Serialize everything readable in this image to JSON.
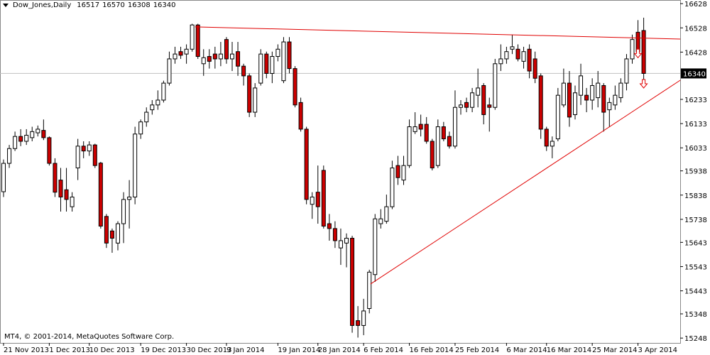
{
  "chart_data": {
    "type": "candlestick",
    "title": "Dow_Jones,Daily",
    "footer": "MT4, © 2001-2014, MetaQuotes Software Corp.",
    "categories": [
      "21 Nov 2013",
      null,
      null,
      null,
      null,
      null,
      null,
      null,
      "1 Dec 2013",
      null,
      null,
      null,
      null,
      null,
      null,
      "10 Dec 2013",
      null,
      null,
      null,
      null,
      null,
      null,
      null,
      null,
      "19 Dec 2013",
      null,
      null,
      null,
      null,
      null,
      null,
      null,
      "30 Dec 2013",
      null,
      null,
      null,
      null,
      null,
      null,
      "9 Jan 2014",
      null,
      null,
      null,
      null,
      null,
      null,
      null,
      null,
      "19 Jan 2014",
      null,
      null,
      null,
      null,
      null,
      null,
      "28 Jan 2014",
      null,
      null,
      null,
      null,
      null,
      null,
      null,
      "6 Feb 2014",
      null,
      null,
      null,
      null,
      null,
      null,
      null,
      "16 Feb 2014",
      null,
      null,
      null,
      null,
      null,
      null,
      null,
      "25 Feb 2014",
      null,
      null,
      null,
      null,
      null,
      null,
      null,
      null,
      "6 Mar 2014",
      null,
      null,
      null,
      null,
      null,
      null,
      "16 Mar 2014",
      null,
      null,
      null,
      null,
      null,
      null,
      null,
      "25 Mar 2014",
      null,
      null,
      null,
      null,
      null,
      null,
      null,
      "3 Apr 2014",
      null
    ],
    "open": [
      15852,
      15969,
      16030,
      16080,
      16060,
      16075,
      16095,
      16105,
      16075,
      15969,
      15900,
      15860,
      15790,
      15950,
      16040,
      16020,
      16045,
      15970,
      15750,
      15690,
      15640,
      15720,
      15820,
      15830,
      16090,
      16140,
      16190,
      16210,
      16230,
      16300,
      16400,
      16430,
      16420,
      16440,
      16540,
      16380,
      16410,
      16420,
      16400,
      16480,
      16400,
      16430,
      16370,
      16330,
      16180,
      16300,
      16420,
      16340,
      16410,
      16310,
      16470,
      16360,
      16220,
      16110,
      15800,
      15850,
      15940,
      15720,
      15700,
      15620,
      15640,
      15660,
      15320,
      15300,
      15370,
      15510,
      15720,
      15730,
      15790,
      15960,
      15900,
      15960,
      16100,
      16130,
      16130,
      16060,
      15960,
      16120,
      16080,
      16040,
      16200,
      16220,
      16200,
      16250,
      16290,
      16210,
      16200,
      16380,
      16400,
      16440,
      16440,
      16390,
      16440,
      16400,
      16330,
      16110,
      16040,
      16070,
      16210,
      16300,
      16170,
      16250,
      16250,
      16230,
      16240,
      16290,
      16190,
      16210,
      16240,
      16300,
      16400,
      16510,
      16517
    ],
    "high": [
      15985,
      16045,
      16100,
      16110,
      16110,
      16120,
      16125,
      16150,
      16080,
      15990,
      15950,
      15950,
      15850,
      16070,
      16060,
      16060,
      16050,
      15975,
      15760,
      15700,
      15730,
      15850,
      15900,
      16120,
      16150,
      16200,
      16230,
      16270,
      16310,
      16430,
      16450,
      16450,
      16460,
      16545,
      16545,
      16440,
      16440,
      16450,
      16470,
      16490,
      16470,
      16470,
      16380,
      16340,
      16300,
      16440,
      16430,
      16430,
      16460,
      16490,
      16490,
      16370,
      16240,
      16120,
      15850,
      15960,
      15960,
      15760,
      15730,
      15700,
      15680,
      15670,
      15380,
      15410,
      15530,
      15760,
      15780,
      15840,
      15980,
      16000,
      16000,
      16150,
      16180,
      16170,
      16160,
      16070,
      16150,
      16140,
      16100,
      16270,
      16230,
      16240,
      16280,
      16360,
      16300,
      16240,
      16400,
      16460,
      16450,
      16500,
      16460,
      16450,
      16460,
      16430,
      16340,
      16120,
      16080,
      16280,
      16360,
      16350,
      16290,
      16380,
      16280,
      16320,
      16350,
      16300,
      16240,
      16290,
      16320,
      16420,
      16500,
      16560,
      16570
    ],
    "low": [
      15830,
      15950,
      16020,
      16040,
      16045,
      16060,
      16080,
      16065,
      15960,
      15830,
      15770,
      15770,
      15770,
      15900,
      15990,
      16000,
      15950,
      15700,
      15620,
      15600,
      15610,
      15640,
      15700,
      15800,
      16070,
      16120,
      16170,
      16190,
      16220,
      16290,
      16380,
      16400,
      16380,
      16430,
      16400,
      16330,
      16360,
      16360,
      16370,
      16380,
      16350,
      16330,
      16290,
      16160,
      16160,
      16290,
      16320,
      16300,
      16390,
      16300,
      16340,
      16200,
      16100,
      15800,
      15740,
      15720,
      15700,
      15650,
      15620,
      15550,
      15540,
      15270,
      15250,
      15260,
      15350,
      15480,
      15700,
      15720,
      15780,
      15880,
      15880,
      15950,
      16090,
      16080,
      16050,
      15940,
      15950,
      16060,
      16030,
      16030,
      16170,
      16180,
      16180,
      16200,
      16130,
      16100,
      16190,
      16350,
      16380,
      16420,
      16390,
      16360,
      16320,
      16300,
      16070,
      16020,
      15990,
      16060,
      16200,
      16120,
      16150,
      16210,
      16180,
      16190,
      16200,
      16100,
      16120,
      16190,
      16220,
      16270,
      16380,
      16420,
      16308
    ],
    "close": [
      15969,
      16030,
      16080,
      16060,
      16085,
      16100,
      16110,
      16075,
      15969,
      15850,
      15830,
      15820,
      15830,
      16040,
      16020,
      16045,
      15960,
      15710,
      15640,
      15660,
      15720,
      15820,
      15830,
      16090,
      16140,
      16180,
      16210,
      16230,
      16300,
      16400,
      16420,
      16415,
      16440,
      16540,
      16410,
      16405,
      16390,
      16400,
      16420,
      16400,
      16420,
      16370,
      16330,
      16180,
      16280,
      16420,
      16340,
      16410,
      16440,
      16470,
      16360,
      16210,
      16110,
      15820,
      15830,
      15790,
      15710,
      15700,
      15650,
      15650,
      15660,
      15300,
      15300,
      15360,
      15520,
      15740,
      15740,
      15790,
      15950,
      15910,
      15960,
      16120,
      16120,
      16110,
      16060,
      15950,
      16120,
      16070,
      16040,
      16200,
      16210,
      16200,
      16260,
      16280,
      16170,
      16200,
      16380,
      16400,
      16430,
      16450,
      16400,
      16430,
      16350,
      16320,
      16110,
      16040,
      16060,
      16250,
      16300,
      16160,
      16260,
      16330,
      16230,
      16290,
      16300,
      16180,
      16220,
      16250,
      16300,
      16400,
      16480,
      16430,
      16340
    ],
    "up_color": "#ffffff",
    "down_color": "#cc0000",
    "trendlines": [
      {
        "x": [
          33.5,
          118.4
        ],
        "values": [
          16532,
          16482
        ],
        "color": "#e00000"
      },
      {
        "x": [
          64.2,
          118.4
        ],
        "values": [
          15471,
          16312
        ],
        "color": "#e00000"
      }
    ],
    "arrows": [
      {
        "x": 111,
        "value": 16440
      },
      {
        "x": 112,
        "value": 16315
      }
    ],
    "arrow_color": "#e00000",
    "ylim": [
      15228,
      16643
    ],
    "yticks": [
      16628,
      16528,
      16428,
      16233,
      16133,
      16033,
      15938,
      15838,
      15738,
      15643,
      15543,
      15443,
      15348,
      15248
    ]
  }
}
